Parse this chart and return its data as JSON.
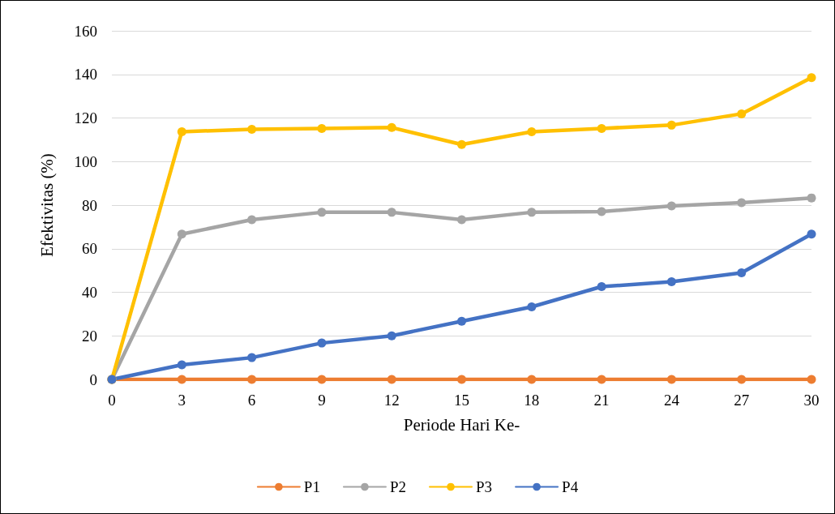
{
  "chart_data": {
    "type": "line",
    "xlabel": "Periode Hari Ke-",
    "ylabel": "Efektivitas (%)",
    "categories": [
      "0",
      "3",
      "6",
      "9",
      "12",
      "15",
      "18",
      "21",
      "24",
      "27",
      "30"
    ],
    "series": [
      {
        "name": "P1",
        "color": "#ed7d31",
        "values": [
          0,
          0,
          0,
          0,
          0,
          0,
          0,
          0,
          0,
          0,
          0
        ]
      },
      {
        "name": "P2",
        "color": "#a5a5a5",
        "values": [
          0,
          66.7,
          73.3,
          76.7,
          76.7,
          73.3,
          76.7,
          77,
          79.6,
          81.1,
          83.3
        ]
      },
      {
        "name": "P3",
        "color": "#ffc000",
        "values": [
          0,
          113.7,
          114.8,
          115.2,
          115.6,
          107.8,
          113.7,
          115.2,
          116.7,
          121.9,
          138.5
        ]
      },
      {
        "name": "P4",
        "color": "#4472c4",
        "values": [
          0,
          6.7,
          10,
          16.7,
          20,
          26.7,
          33.3,
          42.6,
          44.8,
          48.9,
          66.7
        ]
      }
    ],
    "ylim": [
      0,
      160
    ],
    "yticks": [
      0,
      20,
      40,
      60,
      80,
      100,
      120,
      140,
      160
    ],
    "grid": "y",
    "legend": "bottom",
    "marker": "circle",
    "line_style": "solid"
  }
}
